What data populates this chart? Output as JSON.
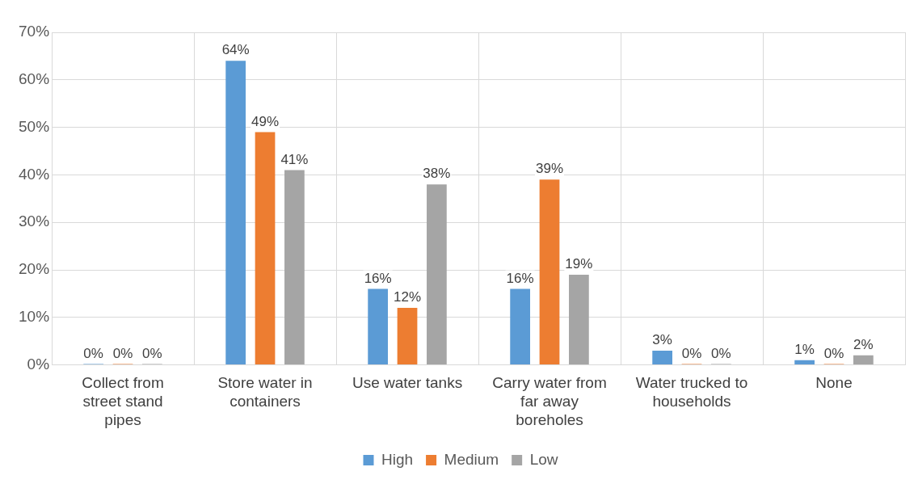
{
  "chart_data": {
    "type": "bar",
    "categories": [
      "Collect from street stand pipes",
      "Store water in containers",
      "Use water tanks",
      "Carry water from far away boreholes",
      "Water trucked to households",
      "None"
    ],
    "series": [
      {
        "name": "High",
        "color": "#5b9bd5",
        "values": [
          0,
          64,
          16,
          16,
          3,
          1
        ],
        "value_labels": [
          "0%",
          "64%",
          "16%",
          "16%",
          "3%",
          "1%"
        ]
      },
      {
        "name": "Medium",
        "color": "#ed7d31",
        "values": [
          0,
          49,
          12,
          39,
          0,
          0
        ],
        "value_labels": [
          "0%",
          "49%",
          "12%",
          "39%",
          "0%",
          "0%"
        ]
      },
      {
        "name": "Low",
        "color": "#a5a5a5",
        "values": [
          0,
          41,
          38,
          19,
          0,
          2
        ],
        "value_labels": [
          "0%",
          "41%",
          "38%",
          "19%",
          "0%",
          "2%"
        ]
      }
    ],
    "ylim": [
      0,
      70
    ],
    "yticks": [
      {
        "value": 0,
        "label": "0%"
      },
      {
        "value": 10,
        "label": "10%"
      },
      {
        "value": 20,
        "label": "20%"
      },
      {
        "value": 30,
        "label": "30%"
      },
      {
        "value": 40,
        "label": "40%"
      },
      {
        "value": 50,
        "label": "50%"
      },
      {
        "value": 60,
        "label": "60%"
      },
      {
        "value": 70,
        "label": "70%"
      }
    ],
    "grid": true,
    "legend": "bottom"
  }
}
